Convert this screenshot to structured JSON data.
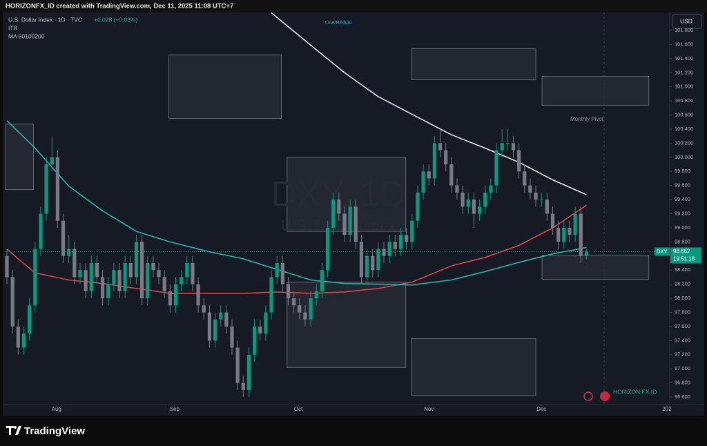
{
  "chart_data": {
    "type": "candlestick",
    "credit": "HORIZONFX_ID created with TradingView.com, Dec 11, 2025 11:08 UTC+7",
    "title": "U.S. Dollar Index · 1D · TVC",
    "change": "+0.028 (+0.03%)",
    "indicators": [
      "ITR",
      "MA 50100200"
    ],
    "link": "t.me/HFduni",
    "watermark": [
      "DXY, 1D",
      "U.S. Dollar Index"
    ],
    "annotation": "Monthly Pivot",
    "currency": "USD",
    "brand": "HORIZON FX.ID",
    "footer_logo": "TradingView",
    "up_color": "#089981",
    "down_color": "#787b86",
    "ylim": [
      96.375,
      102.055
    ],
    "yticks": [
      {
        "value": 101.8,
        "label": "101.800"
      },
      {
        "value": 101.6,
        "label": "101.600"
      },
      {
        "value": 101.4,
        "label": "101.400"
      },
      {
        "value": 101.2,
        "label": "101.200"
      },
      {
        "value": 101.0,
        "label": "101.000"
      },
      {
        "value": 100.8,
        "label": "100.800"
      },
      {
        "value": 100.6,
        "label": "100.600"
      },
      {
        "value": 100.4,
        "label": "100.400"
      },
      {
        "value": 100.2,
        "label": "100.200"
      },
      {
        "value": 100.0,
        "label": "100.000"
      },
      {
        "value": 99.8,
        "label": "99.800"
      },
      {
        "value": 99.6,
        "label": "99.600"
      },
      {
        "value": 99.4,
        "label": "99.400"
      },
      {
        "value": 99.2,
        "label": "99.200"
      },
      {
        "value": 99.0,
        "label": "99.000"
      },
      {
        "value": 98.8,
        "label": "98.800"
      },
      {
        "value": 98.6,
        "label": "98.600"
      },
      {
        "value": 98.4,
        "label": "98.400"
      },
      {
        "value": 98.2,
        "label": "98.200"
      },
      {
        "value": 98.0,
        "label": "98.000"
      },
      {
        "value": 97.8,
        "label": "97.800"
      },
      {
        "value": 97.6,
        "label": "97.600"
      },
      {
        "value": 97.4,
        "label": "97.400"
      },
      {
        "value": 97.2,
        "label": "97.200"
      },
      {
        "value": 97.0,
        "label": "97.000"
      },
      {
        "value": 96.8,
        "label": "96.800"
      },
      {
        "value": 96.6,
        "label": "96.600"
      }
    ],
    "xlim": [
      -0.25,
      117.8
    ],
    "xticks": [
      {
        "value": 8.8,
        "label": "Aug"
      },
      {
        "value": 29.8,
        "label": "Sep"
      },
      {
        "value": 51.8,
        "label": "Oct"
      },
      {
        "value": 75,
        "label": "Nov"
      },
      {
        "value": 95,
        "label": "Dec"
      },
      {
        "value": 117.3,
        "label": "202"
      }
    ],
    "last_price": {
      "label": "DXY",
      "value": 98.662,
      "countdown": "19:51:18"
    },
    "zones": [
      {
        "x": [
          -0.25,
          4.7
        ],
        "y": [
          99.54,
          100.47
        ]
      },
      {
        "x": [
          28.8,
          48.8
        ],
        "y": [
          100.55,
          101.45
        ]
      },
      {
        "x": [
          49.8,
          70.9
        ],
        "y": [
          98.95,
          100.0
        ]
      },
      {
        "x": [
          49.8,
          70.9
        ],
        "y": [
          97.02,
          98.23
        ]
      },
      {
        "x": [
          71.9,
          94
        ],
        "y": [
          101.1,
          101.54
        ]
      },
      {
        "x": [
          71.9,
          94
        ],
        "y": [
          96.62,
          97.43
        ]
      },
      {
        "x": [
          95.1,
          114.1
        ],
        "y": [
          100.74,
          101.15
        ]
      },
      {
        "x": [
          95.1,
          114.1
        ],
        "y": [
          98.27,
          98.61
        ]
      }
    ],
    "ma_lines": [
      {
        "color": "#e6e6e6",
        "x": [
          47,
          54,
          60,
          66,
          72,
          79,
          85,
          91,
          97,
          103
        ],
        "values": [
          102.05,
          101.59,
          101.2,
          100.86,
          100.61,
          100.32,
          100.13,
          99.93,
          99.68,
          99.47
        ]
      },
      {
        "color": "#e0424a",
        "x": [
          0,
          2,
          5,
          11,
          17,
          23,
          29,
          36,
          42,
          48,
          54,
          60,
          66,
          72,
          79,
          85,
          91,
          97,
          103
        ],
        "values": [
          98.7,
          98.56,
          98.36,
          98.26,
          98.21,
          98.14,
          98.07,
          98.07,
          98.07,
          98.09,
          98.07,
          98.09,
          98.14,
          98.23,
          98.46,
          98.58,
          98.75,
          99.0,
          99.32
        ]
      },
      {
        "color": "#26b3b0",
        "x": [
          0,
          5,
          11,
          17,
          23,
          29,
          36,
          42,
          48,
          54,
          60,
          66,
          72,
          79,
          85,
          91,
          97,
          103
        ],
        "values": [
          100.52,
          100.13,
          99.59,
          99.24,
          98.95,
          98.8,
          98.66,
          98.56,
          98.41,
          98.26,
          98.21,
          98.2,
          98.19,
          98.26,
          98.38,
          98.51,
          98.63,
          98.72
        ]
      }
    ],
    "candles": [
      [
        98.6,
        98.7,
        98.2,
        98.3
      ],
      [
        98.3,
        98.4,
        97.5,
        97.6
      ],
      [
        97.6,
        97.7,
        97.2,
        97.3
      ],
      [
        97.3,
        97.6,
        97.2,
        97.5
      ],
      [
        97.5,
        98.0,
        97.4,
        97.9
      ],
      [
        97.9,
        98.8,
        97.8,
        98.7
      ],
      [
        98.7,
        99.3,
        98.6,
        99.2
      ],
      [
        99.2,
        100.0,
        99.1,
        99.9
      ],
      [
        99.9,
        100.3,
        99.8,
        100.0
      ],
      [
        100.0,
        100.1,
        99.0,
        99.1
      ],
      [
        99.1,
        99.2,
        98.5,
        98.6
      ],
      [
        98.6,
        98.9,
        98.5,
        98.7
      ],
      [
        98.7,
        98.8,
        98.2,
        98.3
      ],
      [
        98.3,
        98.5,
        98.2,
        98.4
      ],
      [
        98.4,
        98.5,
        98.0,
        98.1
      ],
      [
        98.1,
        98.6,
        98.0,
        98.5
      ],
      [
        98.5,
        98.6,
        98.2,
        98.3
      ],
      [
        98.3,
        98.4,
        97.9,
        98.0
      ],
      [
        98.0,
        98.3,
        97.9,
        98.2
      ],
      [
        98.2,
        98.5,
        98.1,
        98.4
      ],
      [
        98.4,
        98.5,
        98.0,
        98.1
      ],
      [
        98.1,
        98.6,
        98.0,
        98.5
      ],
      [
        98.5,
        98.6,
        98.2,
        98.3
      ],
      [
        98.3,
        98.9,
        98.2,
        98.8
      ],
      [
        98.8,
        98.9,
        97.9,
        98.0
      ],
      [
        98.0,
        98.6,
        97.9,
        98.5
      ],
      [
        98.5,
        98.6,
        98.3,
        98.4
      ],
      [
        98.4,
        98.5,
        98.2,
        98.3
      ],
      [
        98.3,
        98.4,
        98.0,
        98.1
      ],
      [
        98.1,
        98.2,
        97.8,
        97.9
      ],
      [
        97.9,
        98.3,
        97.8,
        98.2
      ],
      [
        98.2,
        98.4,
        98.1,
        98.3
      ],
      [
        98.3,
        98.6,
        98.2,
        98.5
      ],
      [
        98.5,
        98.6,
        98.1,
        98.2
      ],
      [
        98.2,
        98.3,
        97.8,
        97.9
      ],
      [
        97.9,
        98.0,
        97.7,
        97.8
      ],
      [
        97.8,
        97.9,
        97.3,
        97.4
      ],
      [
        97.4,
        97.8,
        97.3,
        97.7
      ],
      [
        97.7,
        97.9,
        97.6,
        97.8
      ],
      [
        97.8,
        97.9,
        97.5,
        97.6
      ],
      [
        97.6,
        97.7,
        97.2,
        97.3
      ],
      [
        97.3,
        97.4,
        96.7,
        96.8
      ],
      [
        96.8,
        96.9,
        96.6,
        96.7
      ],
      [
        96.7,
        97.3,
        96.6,
        97.2
      ],
      [
        97.2,
        97.7,
        97.1,
        97.6
      ],
      [
        97.6,
        97.7,
        97.4,
        97.5
      ],
      [
        97.5,
        97.9,
        97.4,
        97.8
      ],
      [
        97.8,
        98.4,
        97.7,
        98.3
      ],
      [
        98.3,
        98.6,
        98.2,
        98.5
      ],
      [
        98.5,
        98.6,
        98.1,
        98.2
      ],
      [
        98.2,
        98.3,
        97.9,
        98.0
      ],
      [
        98.0,
        98.1,
        97.8,
        97.9
      ],
      [
        97.9,
        98.0,
        97.7,
        97.8
      ],
      [
        97.8,
        97.9,
        97.6,
        97.7
      ],
      [
        97.7,
        98.1,
        97.6,
        98.0
      ],
      [
        98.0,
        98.2,
        97.9,
        98.1
      ],
      [
        98.1,
        98.5,
        98.0,
        98.4
      ],
      [
        98.4,
        99.1,
        98.3,
        99.0
      ],
      [
        99.0,
        99.5,
        98.9,
        99.4
      ],
      [
        99.4,
        99.5,
        99.1,
        99.2
      ],
      [
        99.2,
        99.3,
        98.8,
        98.9
      ],
      [
        98.9,
        99.4,
        98.8,
        99.3
      ],
      [
        99.3,
        99.4,
        98.7,
        98.8
      ],
      [
        98.8,
        98.9,
        98.2,
        98.3
      ],
      [
        98.3,
        98.7,
        98.2,
        98.6
      ],
      [
        98.6,
        98.7,
        98.3,
        98.4
      ],
      [
        98.4,
        98.8,
        98.3,
        98.7
      ],
      [
        98.7,
        98.8,
        98.5,
        98.6
      ],
      [
        98.6,
        98.9,
        98.5,
        98.8
      ],
      [
        98.8,
        98.9,
        98.6,
        98.7
      ],
      [
        98.7,
        99.0,
        98.6,
        98.9
      ],
      [
        98.9,
        99.0,
        98.7,
        98.8
      ],
      [
        98.8,
        99.2,
        98.7,
        99.1
      ],
      [
        99.1,
        99.6,
        99.0,
        99.5
      ],
      [
        99.5,
        99.9,
        99.4,
        99.8
      ],
      [
        99.8,
        99.9,
        99.6,
        99.7
      ],
      [
        99.7,
        100.3,
        99.6,
        100.2
      ],
      [
        100.2,
        100.4,
        100.0,
        100.1
      ],
      [
        100.1,
        100.2,
        99.8,
        99.9
      ],
      [
        99.9,
        100.0,
        99.5,
        99.6
      ],
      [
        99.6,
        99.7,
        99.4,
        99.5
      ],
      [
        99.5,
        99.6,
        99.2,
        99.3
      ],
      [
        99.3,
        99.5,
        99.2,
        99.4
      ],
      [
        99.4,
        99.5,
        99.0,
        99.2
      ],
      [
        99.2,
        99.4,
        99.1,
        99.3
      ],
      [
        99.3,
        99.6,
        99.2,
        99.5
      ],
      [
        99.5,
        99.7,
        99.4,
        99.6
      ],
      [
        99.6,
        100.2,
        99.5,
        100.1
      ],
      [
        100.1,
        100.4,
        100.0,
        100.2
      ],
      [
        100.2,
        100.4,
        100.1,
        100.2
      ],
      [
        100.2,
        100.3,
        100.0,
        100.1
      ],
      [
        100.1,
        100.2,
        99.7,
        99.8
      ],
      [
        99.8,
        99.9,
        99.5,
        99.6
      ],
      [
        99.6,
        99.7,
        99.4,
        99.5
      ],
      [
        99.5,
        99.6,
        99.3,
        99.4
      ],
      [
        99.4,
        99.5,
        99.3,
        99.4
      ],
      [
        99.4,
        99.5,
        99.1,
        99.2
      ],
      [
        99.2,
        99.3,
        98.9,
        99.0
      ],
      [
        99.0,
        99.1,
        98.7,
        98.8
      ],
      [
        98.8,
        99.1,
        98.7,
        99.0
      ],
      [
        99.0,
        99.1,
        98.8,
        98.9
      ],
      [
        98.9,
        99.3,
        98.8,
        99.2
      ],
      [
        99.2,
        99.3,
        98.5,
        98.6
      ],
      [
        98.6,
        98.7,
        98.55,
        98.662
      ]
    ]
  }
}
